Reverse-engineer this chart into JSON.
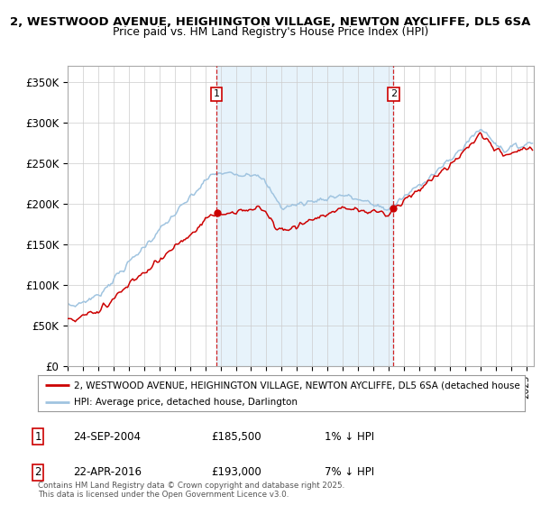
{
  "title_line1": "2, WESTWOOD AVENUE, HEIGHINGTON VILLAGE, NEWTON AYCLIFFE, DL5 6SA",
  "title_line2": "Price paid vs. HM Land Registry's House Price Index (HPI)",
  "ylabel_ticks": [
    "£0",
    "£50K",
    "£100K",
    "£150K",
    "£200K",
    "£250K",
    "£300K",
    "£350K"
  ],
  "ytick_vals": [
    0,
    50000,
    100000,
    150000,
    200000,
    250000,
    300000,
    350000
  ],
  "ylim": [
    0,
    370000
  ],
  "xlim_start": 1995.0,
  "xlim_end": 2025.5,
  "sale1_x": 2004.73,
  "sale1_y": 185500,
  "sale1_label": "1",
  "sale1_date": "24-SEP-2004",
  "sale1_price": "£185,500",
  "sale1_hpi": "1% ↓ HPI",
  "sale2_x": 2016.31,
  "sale2_y": 193000,
  "sale2_label": "2",
  "sale2_date": "22-APR-2016",
  "sale2_price": "£193,000",
  "sale2_hpi": "7% ↓ HPI",
  "legend_line1": "2, WESTWOOD AVENUE, HEIGHINGTON VILLAGE, NEWTON AYCLIFFE, DL5 6SA (detached house",
  "legend_line2": "HPI: Average price, detached house, Darlington",
  "footer": "Contains HM Land Registry data © Crown copyright and database right 2025.\nThis data is licensed under the Open Government Licence v3.0.",
  "hpi_color": "#a0c4e0",
  "price_color": "#cc0000",
  "vline_color": "#cc0000",
  "fill_color": "#d0e8f8",
  "plot_bg": "#ffffff",
  "grid_color": "#cccccc",
  "marker_color": "#cc0000"
}
